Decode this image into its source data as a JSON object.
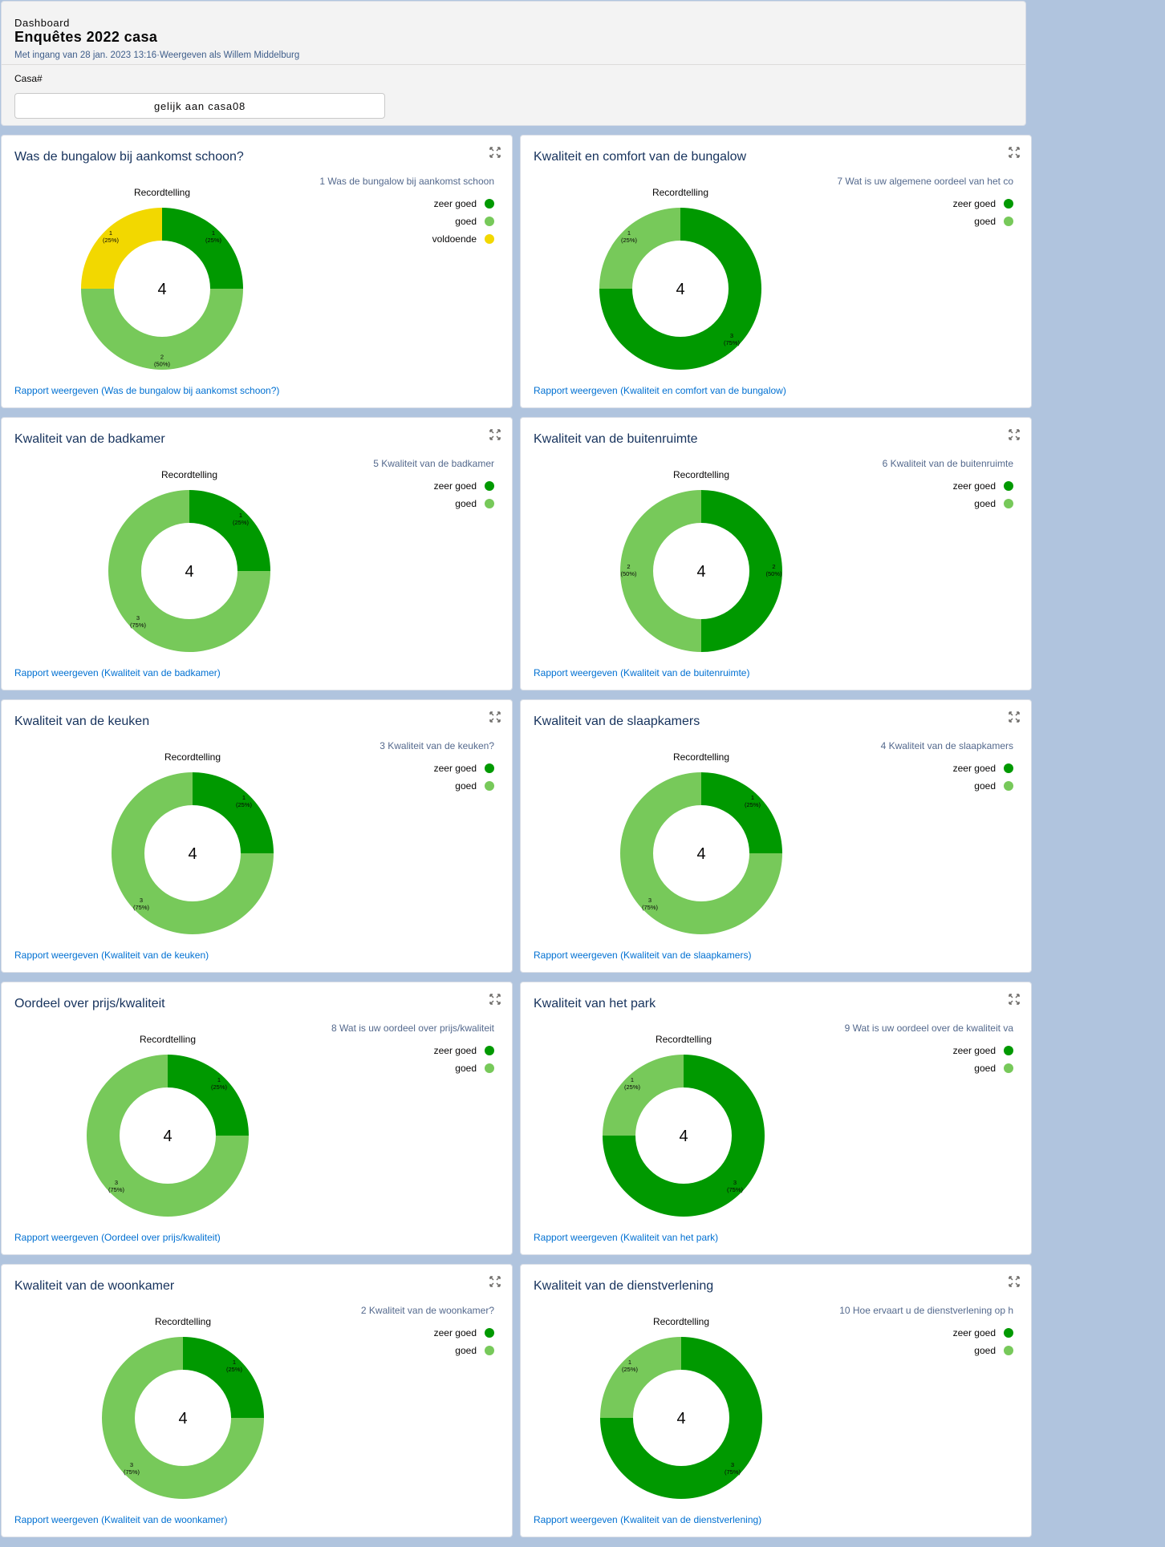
{
  "header": {
    "eyebrow": "Dashboard",
    "title": "Enquêtes 2022 casa",
    "subline": "Met ingang van 28 jan. 2023 13:16·Weergeven als Willem Middelburg",
    "filter_label": "Casa#",
    "filter_value": "gelijk aan casa08"
  },
  "colors": {
    "zeer goed": "#009900",
    "goed": "#77c95a",
    "voldoende": "#f2d800",
    "link": "#0070d2"
  },
  "cards": [
    {
      "title": "Was de bungalow bij aankomst schoon?",
      "chart_label": "Recordtelling",
      "legend_title": "1 Was de bungalow bij aankomst schoon",
      "legend": [
        "zeer goed",
        "goed",
        "voldoende"
      ],
      "total": "4",
      "link": "Rapport weergeven (Was de bungalow bij aankomst schoon?)"
    },
    {
      "title": "Kwaliteit en comfort van de bungalow",
      "chart_label": "Recordtelling",
      "legend_title": "7 Wat is uw  algemene oordeel van het co",
      "legend": [
        "zeer goed",
        "goed"
      ],
      "total": "4",
      "link": "Rapport weergeven (Kwaliteit en comfort van de bungalow)"
    },
    {
      "title": "Kwaliteit van de badkamer",
      "chart_label": "Recordtelling",
      "legend_title": "5 Kwaliteit van de badkamer",
      "legend": [
        "zeer goed",
        "goed"
      ],
      "total": "4",
      "link": "Rapport weergeven (Kwaliteit van de badkamer)"
    },
    {
      "title": "Kwaliteit van de buitenruimte",
      "chart_label": "Recordtelling",
      "legend_title": "6 Kwaliteit van de buitenruimte",
      "legend": [
        "zeer goed",
        "goed"
      ],
      "total": "4",
      "link": "Rapport weergeven (Kwaliteit van de buitenruimte)"
    },
    {
      "title": "Kwaliteit van de keuken",
      "chart_label": "Recordtelling",
      "legend_title": "3 Kwaliteit van de keuken?",
      "legend": [
        "zeer goed",
        "goed"
      ],
      "total": "4",
      "link": "Rapport weergeven (Kwaliteit van de keuken)"
    },
    {
      "title": "Kwaliteit van de slaapkamers",
      "chart_label": "Recordtelling",
      "legend_title": "4 Kwaliteit van de slaapkamers",
      "legend": [
        "zeer goed",
        "goed"
      ],
      "total": "4",
      "link": "Rapport weergeven (Kwaliteit van de slaapkamers)"
    },
    {
      "title": "Oordeel over prijs/kwaliteit",
      "chart_label": "Recordtelling",
      "legend_title": "8 Wat is uw oordeel over prijs/kwaliteit",
      "legend": [
        "zeer goed",
        "goed"
      ],
      "total": "4",
      "link": "Rapport weergeven (Oordeel over prijs/kwaliteit)"
    },
    {
      "title": "Kwaliteit van het park",
      "chart_label": "Recordtelling",
      "legend_title": "9 Wat is uw oordeel over de kwaliteit va",
      "legend": [
        "zeer goed",
        "goed"
      ],
      "total": "4",
      "link": "Rapport weergeven (Kwaliteit van het park)"
    },
    {
      "title": "Kwaliteit van de woonkamer",
      "chart_label": "Recordtelling",
      "legend_title": "2 Kwaliteit van de woonkamer?",
      "legend": [
        "zeer goed",
        "goed"
      ],
      "total": "4",
      "link": "Rapport weergeven (Kwaliteit van de woonkamer)"
    },
    {
      "title": "Kwaliteit van de dienstverlening",
      "chart_label": "Recordtelling",
      "legend_title": "10 Hoe ervaart u de dienstverlening op h",
      "legend": [
        "zeer goed",
        "goed"
      ],
      "total": "4",
      "link": "Rapport weergeven (Kwaliteit van de dienstverlening)"
    }
  ],
  "chart_data": [
    {
      "type": "pie",
      "donut": true,
      "title": "Was de bungalow bij aankomst schoon?",
      "categories": [
        "zeer goed",
        "goed",
        "voldoende"
      ],
      "values": [
        1,
        2,
        1
      ],
      "labels": [
        "1\n(25%)",
        "2\n(50%)",
        "1\n(25%)"
      ],
      "total": 4
    },
    {
      "type": "pie",
      "donut": true,
      "title": "Kwaliteit en comfort van de bungalow",
      "categories": [
        "zeer goed",
        "goed"
      ],
      "values": [
        3,
        1
      ],
      "labels": [
        "3\n(75%)",
        "1\n(25%)"
      ],
      "total": 4
    },
    {
      "type": "pie",
      "donut": true,
      "title": "Kwaliteit van de badkamer",
      "categories": [
        "zeer goed",
        "goed"
      ],
      "values": [
        1,
        3
      ],
      "labels": [
        "1\n(25%)",
        "3\n(75%)"
      ],
      "total": 4
    },
    {
      "type": "pie",
      "donut": true,
      "title": "Kwaliteit van de buitenruimte",
      "categories": [
        "zeer goed",
        "goed"
      ],
      "values": [
        2,
        2
      ],
      "labels": [
        "2\n(50%)",
        "2\n(50%)"
      ],
      "total": 4
    },
    {
      "type": "pie",
      "donut": true,
      "title": "Kwaliteit van de keuken",
      "categories": [
        "zeer goed",
        "goed"
      ],
      "values": [
        1,
        3
      ],
      "labels": [
        "1\n(25%)",
        "3\n(75%)"
      ],
      "total": 4
    },
    {
      "type": "pie",
      "donut": true,
      "title": "Kwaliteit van de slaapkamers",
      "categories": [
        "zeer goed",
        "goed"
      ],
      "values": [
        1,
        3
      ],
      "labels": [
        "1\n(25%)",
        "3\n(75%)"
      ],
      "total": 4
    },
    {
      "type": "pie",
      "donut": true,
      "title": "Oordeel over prijs/kwaliteit",
      "categories": [
        "zeer goed",
        "goed"
      ],
      "values": [
        1,
        3
      ],
      "labels": [
        "1\n(25%)",
        "3\n(75%)"
      ],
      "total": 4
    },
    {
      "type": "pie",
      "donut": true,
      "title": "Kwaliteit van het park",
      "categories": [
        "zeer goed",
        "goed"
      ],
      "values": [
        3,
        1
      ],
      "labels": [
        "3\n(75%)",
        "1\n(25%)"
      ],
      "total": 4
    },
    {
      "type": "pie",
      "donut": true,
      "title": "Kwaliteit van de woonkamer",
      "categories": [
        "zeer goed",
        "goed"
      ],
      "values": [
        1,
        3
      ],
      "labels": [
        "1\n(25%)",
        "3\n(75%)"
      ],
      "total": 4
    },
    {
      "type": "pie",
      "donut": true,
      "title": "Kwaliteit van de dienstverlening",
      "categories": [
        "zeer goed",
        "goed"
      ],
      "values": [
        3,
        1
      ],
      "labels": [
        "3\n(75%)",
        "1\n(25%)"
      ],
      "total": 4
    }
  ]
}
